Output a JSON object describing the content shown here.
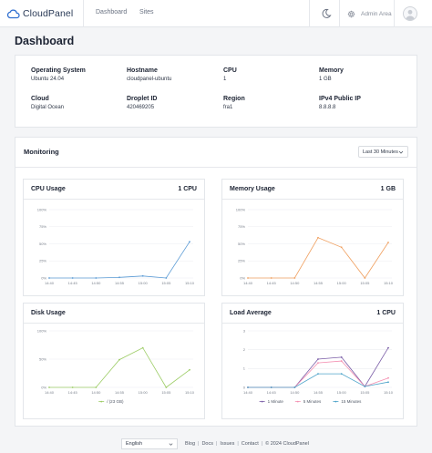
{
  "header": {
    "logo_text": "CloudPanel",
    "nav": [
      "Dashboard",
      "Sites"
    ],
    "admin_label": "Admin Area"
  },
  "page_title": "Dashboard",
  "info": [
    {
      "label": "Operating System",
      "value": "Ubuntu 24.04"
    },
    {
      "label": "Hostname",
      "value": "cloudpanel-ubuntu"
    },
    {
      "label": "CPU",
      "value": "1"
    },
    {
      "label": "Memory",
      "value": "1 GB"
    },
    {
      "label": "Cloud",
      "value": "Digital Ocean"
    },
    {
      "label": "Droplet ID",
      "value": "420469205"
    },
    {
      "label": "Region",
      "value": "fra1"
    },
    {
      "label": "IPv4 Public IP",
      "value": "8.8.8.8"
    }
  ],
  "monitoring": {
    "title": "Monitoring",
    "range_selected": "Last 30 Minutes"
  },
  "colors": {
    "cpu": "#5b9bd5",
    "memory": "#f0a060",
    "disk": "#9ccc65",
    "load_1": "#7b5ea7",
    "load_5": "#f48fb1",
    "load_15": "#4da3c9"
  },
  "panels": {
    "cpu": {
      "title": "CPU Usage",
      "right": "1 CPU"
    },
    "memory": {
      "title": "Memory Usage",
      "right": "1 GB"
    },
    "disk": {
      "title": "Disk Usage",
      "right": ""
    },
    "load": {
      "title": "Load Average",
      "right": "1 CPU"
    }
  },
  "chart_data": [
    {
      "type": "line",
      "title": "CPU Usage",
      "x": [
        "14:40",
        "14:45",
        "14:50",
        "14:55",
        "15:00",
        "15:05",
        "15:10"
      ],
      "y_ticks": [
        "0%",
        "25%",
        "50%",
        "75%",
        "100%"
      ],
      "ylim": [
        0,
        100
      ],
      "series": [
        {
          "values": [
            0,
            0,
            0,
            1,
            3,
            0,
            53
          ]
        }
      ]
    },
    {
      "type": "line",
      "title": "Memory Usage",
      "x": [
        "14:40",
        "14:45",
        "14:50",
        "14:55",
        "15:00",
        "15:05",
        "15:10"
      ],
      "y_ticks": [
        "0%",
        "25%",
        "50%",
        "75%",
        "100%"
      ],
      "ylim": [
        0,
        100
      ],
      "series": [
        {
          "values": [
            0,
            0,
            0,
            59,
            45,
            0,
            52
          ]
        }
      ]
    },
    {
      "type": "line",
      "title": "Disk Usage",
      "x": [
        "14:40",
        "14:45",
        "14:50",
        "14:55",
        "15:00",
        "15:05",
        "15:10"
      ],
      "y_ticks": [
        "0%",
        "50%",
        "100%"
      ],
      "ylim": [
        0,
        100
      ],
      "legend": [
        "/ (23 GB)"
      ],
      "series": [
        {
          "name": "/ (23 GB)",
          "values": [
            0,
            0,
            0,
            49,
            70,
            0,
            31
          ]
        }
      ]
    },
    {
      "type": "line",
      "title": "Load Average",
      "x": [
        "14:40",
        "14:45",
        "14:50",
        "14:55",
        "15:00",
        "15:05",
        "15:10"
      ],
      "y_ticks": [
        "0",
        "1",
        "2",
        "3"
      ],
      "ylim": [
        0,
        3
      ],
      "legend": [
        "1 Minute",
        "5 Minutes",
        "15 Minutes"
      ],
      "series": [
        {
          "name": "1 Minute",
          "values": [
            0,
            0,
            0,
            1.5,
            1.6,
            0.05,
            2.1
          ]
        },
        {
          "name": "5 Minutes",
          "values": [
            0,
            0,
            0,
            1.3,
            1.4,
            0.05,
            0.5
          ]
        },
        {
          "name": "15 Minutes",
          "values": [
            0,
            0,
            0,
            0.72,
            0.72,
            0.05,
            0.28
          ]
        }
      ]
    }
  ],
  "footer": {
    "language": "English",
    "links": [
      "Blog",
      "Docs",
      "Issues",
      "Contact"
    ],
    "copyright": "© 2024  CloudPanel"
  }
}
